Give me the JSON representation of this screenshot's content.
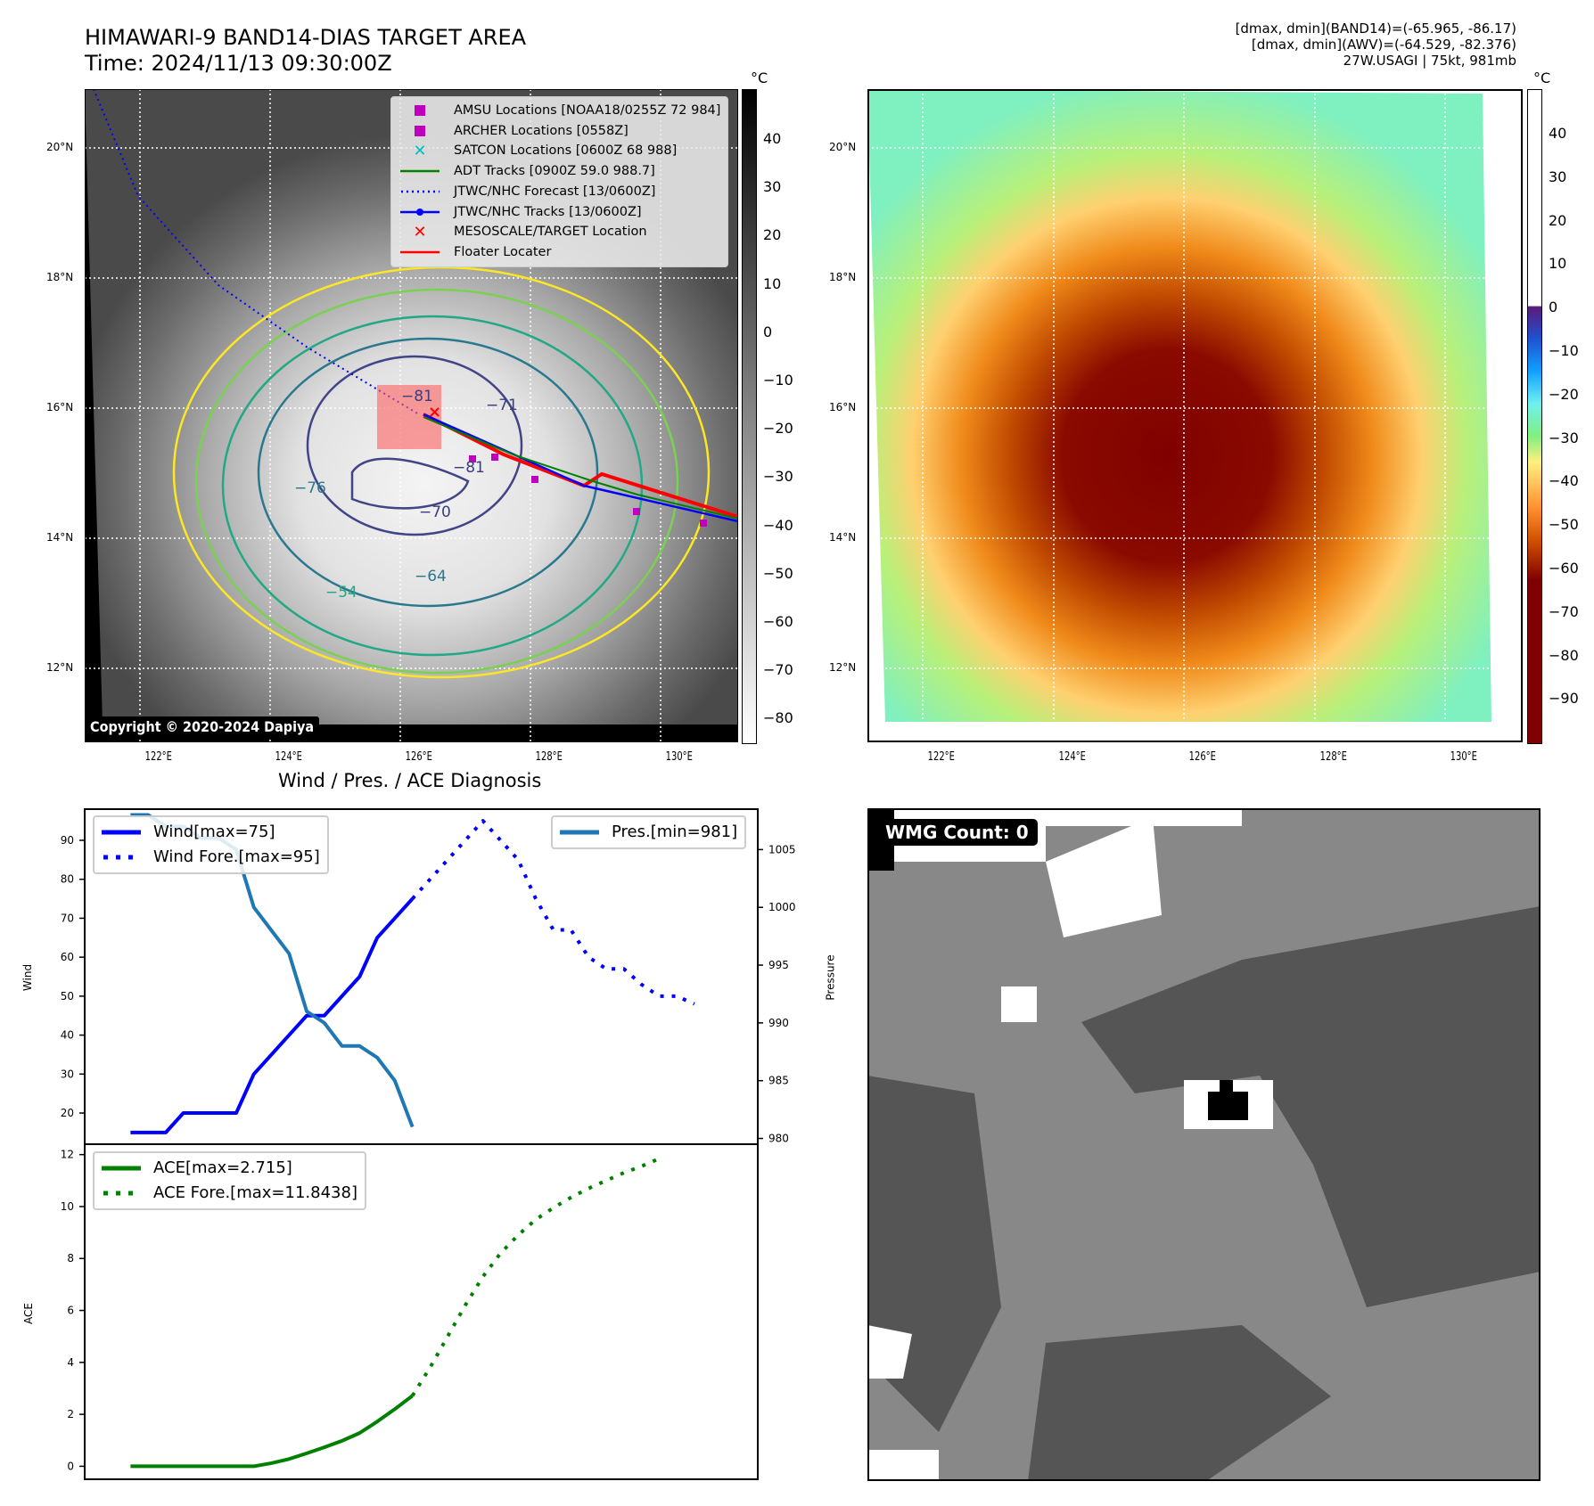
{
  "header": {
    "title_line1": "HIMAWARI-9 BAND14-DIAS TARGET AREA",
    "title_line2": "Time: 2024/11/13 09:30:00Z",
    "right_line1": "[dmax, dmin](BAND14)=(-65.965, -86.17)",
    "right_line2": "[dmax, dmin](AWV)=(-64.529, -82.376)",
    "right_line3": "27W.USAGI | 75kt, 981mb"
  },
  "map_ir": {
    "lat_ticks": [
      "20°N",
      "18°N",
      "16°N",
      "14°N",
      "12°N"
    ],
    "lon_ticks": [
      "122°E",
      "124°E",
      "126°E",
      "128°E",
      "130°E"
    ],
    "colorbar_unit": "°C",
    "colorbar_ticks": [
      "40",
      "30",
      "20",
      "10",
      "0",
      "−10",
      "−20",
      "−30",
      "−40",
      "−50",
      "−60",
      "−70",
      "−80"
    ],
    "contour_labels": [
      "−81",
      "−81",
      "−76",
      "−70",
      "−64",
      "−54",
      "−71"
    ],
    "copyright": "Copyright © 2020-2024 Dapiya",
    "legend": [
      {
        "label": "AMSU Locations [NOAA18/0255Z 72 984]",
        "symbol": "square",
        "color": "#bf00bf"
      },
      {
        "label": "ARCHER Locations [0558Z]",
        "symbol": "square",
        "color": "#bf00bf"
      },
      {
        "label": "SATCON Locations [0600Z 68 988]",
        "symbol": "x",
        "color": "#00bfbf"
      },
      {
        "label": "ADT Tracks [0900Z 59.0 988.7]",
        "symbol": "line",
        "color": "#008000"
      },
      {
        "label": "JTWC/NHC Forecast [13/0600Z]",
        "symbol": "dotted",
        "color": "#0000ff"
      },
      {
        "label": "JTWC/NHC Tracks [13/0600Z]",
        "symbol": "line-dot",
        "color": "#0000ff"
      },
      {
        "label": "MESOSCALE/TARGET Location",
        "symbol": "x",
        "color": "#ff0000"
      },
      {
        "label": "Floater Locater",
        "symbol": "line",
        "color": "#ff0000"
      }
    ]
  },
  "map_color": {
    "lat_ticks": [
      "20°N",
      "18°N",
      "16°N",
      "14°N",
      "12°N"
    ],
    "lon_ticks": [
      "122°E",
      "124°E",
      "126°E",
      "128°E",
      "130°E"
    ],
    "colorbar_unit": "°C",
    "colorbar_ticks": [
      "40",
      "30",
      "20",
      "10",
      "0",
      "−10",
      "−20",
      "−30",
      "−40",
      "−50",
      "−60",
      "−70",
      "−80",
      "−90"
    ]
  },
  "wmg": {
    "badge": "WMG Count: 0"
  },
  "chart_data": [
    {
      "type": "line",
      "title": "Wind / Pres. / ACE Diagnosis",
      "ylabel": "Wind",
      "ylabel_right": "Pressure",
      "ylim": [
        12,
        98
      ],
      "ylim_right": [
        979.5,
        1008.5
      ],
      "yticks": [
        20,
        30,
        40,
        50,
        60,
        70,
        80,
        90
      ],
      "yticks_right": [
        980,
        985,
        990,
        995,
        1000,
        1005
      ],
      "x": [
        0,
        1,
        2,
        3,
        4,
        5,
        6,
        7,
        8,
        9,
        10,
        11,
        12,
        13,
        14,
        15,
        16,
        17,
        18,
        19,
        20,
        21,
        22,
        23,
        24,
        25,
        26,
        27,
        28,
        29,
        30,
        31,
        32,
        33,
        34,
        35
      ],
      "series": [
        {
          "name": "Wind[max=75]",
          "axis": "left",
          "style": "solid",
          "color": "#0000ff",
          "points": [
            [
              0,
              15
            ],
            [
              1,
              15
            ],
            [
              2,
              15
            ],
            [
              3,
              20
            ],
            [
              4,
              20
            ],
            [
              5,
              20
            ],
            [
              6,
              20
            ],
            [
              7,
              30
            ],
            [
              8,
              35
            ],
            [
              9,
              40
            ],
            [
              10,
              45
            ],
            [
              11,
              45
            ],
            [
              12,
              50
            ],
            [
              13,
              55
            ],
            [
              14,
              65
            ],
            [
              15,
              70
            ],
            [
              16,
              75
            ]
          ]
        },
        {
          "name": "Wind Fore.[max=95]",
          "axis": "left",
          "style": "dotted",
          "color": "#0000ff",
          "points": [
            [
              16,
              75
            ],
            [
              17,
              80
            ],
            [
              18,
              85
            ],
            [
              19,
              90
            ],
            [
              20,
              95
            ],
            [
              21,
              90
            ],
            [
              22,
              85
            ],
            [
              23,
              75
            ],
            [
              24,
              67
            ],
            [
              25,
              67
            ],
            [
              26,
              60
            ],
            [
              27,
              57
            ],
            [
              28,
              57
            ],
            [
              29,
              53
            ],
            [
              30,
              50
            ],
            [
              31,
              50
            ],
            [
              32,
              48
            ]
          ]
        },
        {
          "name": "Pres.[min=981]",
          "axis": "right",
          "style": "solid",
          "color": "#1f77b4",
          "points": [
            [
              0,
              1008
            ],
            [
              1,
              1008
            ],
            [
              2,
              1007
            ],
            [
              3,
              1007
            ],
            [
              4,
              1006
            ],
            [
              5,
              1006
            ],
            [
              6,
              1005
            ],
            [
              7,
              1000
            ],
            [
              8,
              998
            ],
            [
              9,
              996
            ],
            [
              10,
              991
            ],
            [
              11,
              990
            ],
            [
              12,
              988
            ],
            [
              13,
              988
            ],
            [
              14,
              987
            ],
            [
              15,
              985
            ],
            [
              16,
              981
            ]
          ]
        }
      ],
      "legend": [
        {
          "label": "Wind[max=75]",
          "style": "solid",
          "color": "#0000ff",
          "position": "top-left"
        },
        {
          "label": "Wind Fore.[max=95]",
          "style": "dotted",
          "color": "#0000ff",
          "position": "top-left"
        },
        {
          "label": "Pres.[min=981]",
          "style": "solid",
          "color": "#1f77b4",
          "position": "top-right"
        }
      ]
    },
    {
      "type": "line",
      "ylabel": "ACE",
      "ylim": [
        -0.5,
        12.4
      ],
      "yticks": [
        0,
        2,
        4,
        6,
        8,
        10,
        12
      ],
      "series": [
        {
          "name": "ACE[max=2.715]",
          "style": "solid",
          "color": "#008000",
          "points": [
            [
              0,
              0
            ],
            [
              1,
              0
            ],
            [
              2,
              0
            ],
            [
              3,
              0
            ],
            [
              4,
              0
            ],
            [
              5,
              0
            ],
            [
              6,
              0
            ],
            [
              7,
              0
            ],
            [
              8,
              0.12
            ],
            [
              9,
              0.28
            ],
            [
              10,
              0.5
            ],
            [
              11,
              0.73
            ],
            [
              12,
              0.98
            ],
            [
              13,
              1.28
            ],
            [
              14,
              1.72
            ],
            [
              15,
              2.2
            ],
            [
              16,
              2.715
            ]
          ]
        },
        {
          "name": "ACE Fore.[max=11.8438]",
          "style": "dotted",
          "color": "#008000",
          "points": [
            [
              16,
              2.715
            ],
            [
              17,
              3.8
            ],
            [
              18,
              5.0
            ],
            [
              19,
              6.2
            ],
            [
              20,
              7.3
            ],
            [
              21,
              8.2
            ],
            [
              22,
              8.9
            ],
            [
              23,
              9.5
            ],
            [
              24,
              9.95
            ],
            [
              25,
              10.35
            ],
            [
              26,
              10.7
            ],
            [
              27,
              11.0
            ],
            [
              28,
              11.3
            ],
            [
              29,
              11.55
            ],
            [
              30,
              11.8438
            ]
          ]
        }
      ],
      "legend": [
        {
          "label": "ACE[max=2.715]",
          "style": "solid",
          "color": "#008000",
          "position": "top-left"
        },
        {
          "label": "ACE Fore.[max=11.8438]",
          "style": "dotted",
          "color": "#008000",
          "position": "top-left"
        }
      ]
    }
  ]
}
